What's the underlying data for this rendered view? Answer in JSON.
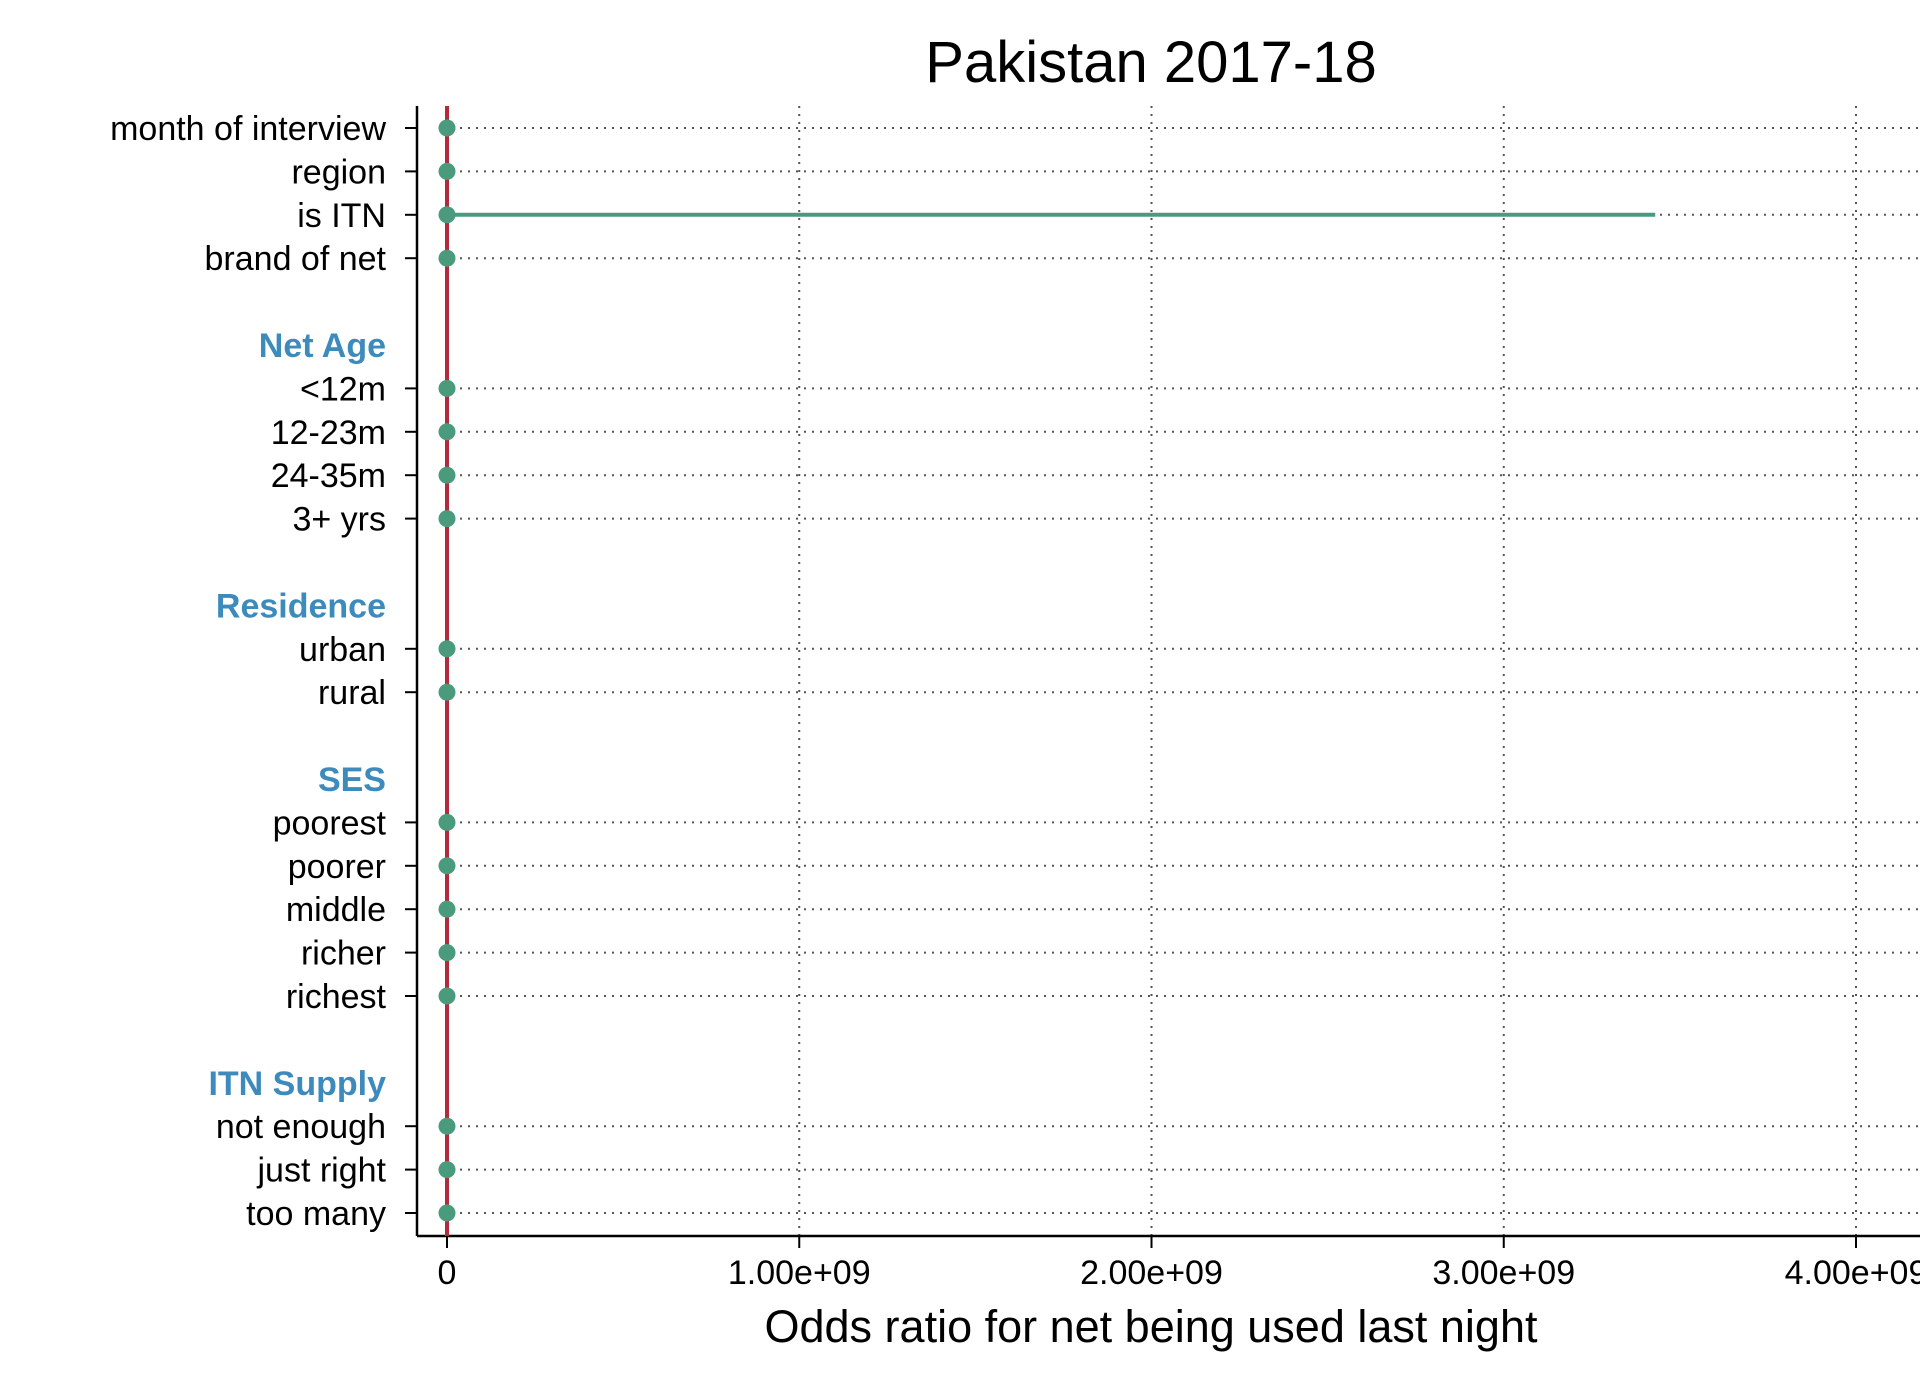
{
  "chart_data": {
    "type": "scatter",
    "title": "Pakistan 2017-18",
    "xlabel": "Odds ratio for net being used last night",
    "ylabel": "",
    "xlim": [
      -85000000,
      4100000000
    ],
    "xticks": [
      {
        "value": 0,
        "label": "0"
      },
      {
        "value": 1000000000,
        "label": "1.00e+09"
      },
      {
        "value": 2000000000,
        "label": "2.00e+09"
      },
      {
        "value": 3000000000,
        "label": "3.00e+09"
      },
      {
        "value": 4000000000,
        "label": "4.00e+09"
      }
    ],
    "reference_line": {
      "x": 0,
      "color": "#b22a3c"
    },
    "grid": "dotted vertical at ticks, dotted horizontal per row",
    "colors": {
      "marker": "#4a9a7d",
      "ci": "#4a9a7d",
      "group_label": "#3d8bbd"
    },
    "rows": [
      {
        "kind": "item",
        "label": "month of interview",
        "estimate": 0,
        "ci": [
          0,
          0
        ]
      },
      {
        "kind": "item",
        "label": "region",
        "estimate": 0,
        "ci": [
          0,
          0
        ]
      },
      {
        "kind": "item",
        "label": "is ITN",
        "estimate": 0,
        "ci": [
          0,
          3430000000
        ]
      },
      {
        "kind": "item",
        "label": "brand of net",
        "estimate": 0,
        "ci": [
          0,
          0
        ]
      },
      {
        "kind": "spacer"
      },
      {
        "kind": "group",
        "label": "Net Age"
      },
      {
        "kind": "item",
        "label": "<12m",
        "estimate": 0,
        "ci": [
          0,
          0
        ]
      },
      {
        "kind": "item",
        "label": "12-23m",
        "estimate": 0,
        "ci": [
          0,
          0
        ]
      },
      {
        "kind": "item",
        "label": "24-35m",
        "estimate": 0,
        "ci": [
          0,
          0
        ]
      },
      {
        "kind": "item",
        "label": "3+ yrs",
        "estimate": 0,
        "ci": [
          0,
          0
        ]
      },
      {
        "kind": "spacer"
      },
      {
        "kind": "group",
        "label": "Residence"
      },
      {
        "kind": "item",
        "label": "urban",
        "estimate": 0,
        "ci": [
          0,
          0
        ]
      },
      {
        "kind": "item",
        "label": "rural",
        "estimate": 0,
        "ci": [
          0,
          0
        ]
      },
      {
        "kind": "spacer"
      },
      {
        "kind": "group",
        "label": "SES"
      },
      {
        "kind": "item",
        "label": "poorest",
        "estimate": 0,
        "ci": [
          0,
          0
        ]
      },
      {
        "kind": "item",
        "label": "poorer",
        "estimate": 0,
        "ci": [
          0,
          0
        ]
      },
      {
        "kind": "item",
        "label": "middle",
        "estimate": 0,
        "ci": [
          0,
          0
        ]
      },
      {
        "kind": "item",
        "label": "richer",
        "estimate": 0,
        "ci": [
          0,
          0
        ]
      },
      {
        "kind": "item",
        "label": "richest",
        "estimate": 0,
        "ci": [
          0,
          0
        ]
      },
      {
        "kind": "spacer"
      },
      {
        "kind": "group",
        "label": "ITN Supply"
      },
      {
        "kind": "item",
        "label": "not enough",
        "estimate": 0,
        "ci": [
          0,
          0
        ]
      },
      {
        "kind": "item",
        "label": "just right",
        "estimate": 0,
        "ci": [
          0,
          0
        ]
      },
      {
        "kind": "item",
        "label": "too many",
        "estimate": 0,
        "ci": [
          0,
          0
        ]
      }
    ]
  }
}
